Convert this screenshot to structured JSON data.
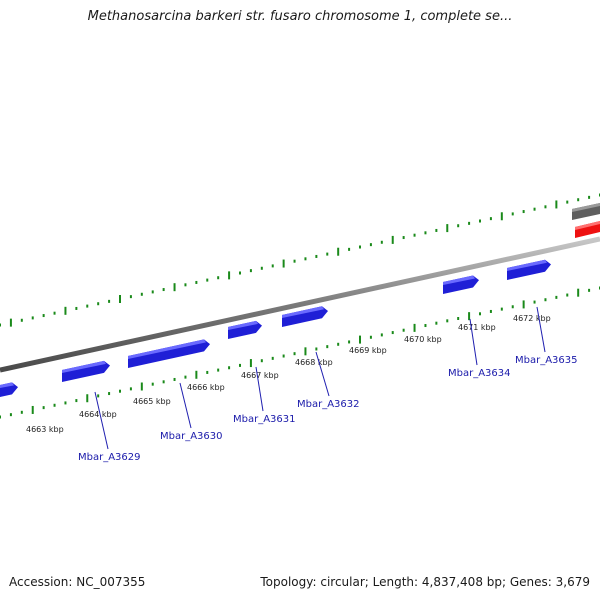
{
  "map": {
    "title": "Methanosarcina barkeri str. fusaro chromosome 1, complete se...",
    "accession": "Accession: NC_007355",
    "summary": "Topology: circular; Length: 4,837,408 bp; Genes: 3,679"
  },
  "ticks": [
    "4663 kbp",
    "4664 kbp",
    "4665 kbp",
    "4666 kbp",
    "4667 kbp",
    "4668 kbp",
    "4669 kbp",
    "4670 kbp",
    "4671 kbp",
    "4672 kbp"
  ],
  "genes": [
    "Mbar_A3629",
    "Mbar_A3630",
    "Mbar_A3631",
    "Mbar_A3632",
    "Mbar_A3634",
    "Mbar_A3635"
  ],
  "colors": {
    "backbone": "#888888",
    "gene_forward": "#1f1fd6",
    "ticks": "#1a8a1a",
    "feature_red": "#ff1a1a",
    "feature_grey": "#6e6e6e"
  }
}
